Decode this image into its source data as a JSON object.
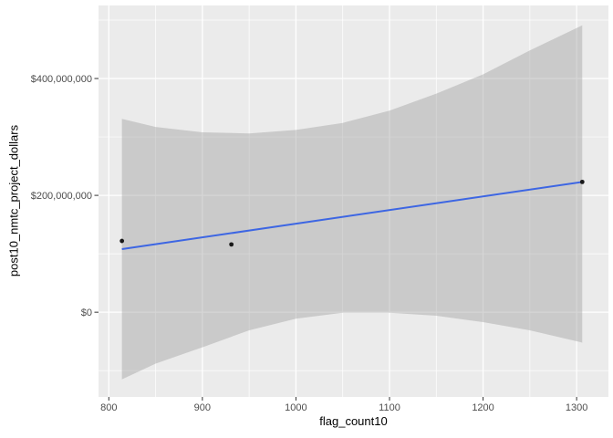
{
  "window": {
    "background": "#FFFFFF"
  },
  "chart_data": {
    "type": "scatter",
    "title": "",
    "xlabel": "flag_count10",
    "ylabel": "post10_nmtc_project_dollars",
    "xlim": [
      789,
      1334
    ],
    "ylim": [
      -145000000,
      525000000
    ],
    "grid": true,
    "legend": false,
    "x_major_ticks": [
      {
        "value": 800,
        "label": "800"
      },
      {
        "value": 900,
        "label": "900"
      },
      {
        "value": 1000,
        "label": "1000"
      },
      {
        "value": 1100,
        "label": "1100"
      },
      {
        "value": 1200,
        "label": "1200"
      },
      {
        "value": 1300,
        "label": "1300"
      }
    ],
    "x_minor_gridlines": [
      850,
      950,
      1050,
      1150,
      1250
    ],
    "y_major_ticks": [
      {
        "value": 0,
        "label": "$0"
      },
      {
        "value": 200000000,
        "label": "$200,000,000"
      },
      {
        "value": 400000000,
        "label": "$400,000,000"
      }
    ],
    "y_minor_gridlines": [
      -100000000,
      100000000,
      300000000,
      500000000
    ],
    "points": [
      {
        "x": 814,
        "y": 122000000
      },
      {
        "x": 931,
        "y": 116000000
      },
      {
        "x": 1306,
        "y": 223000000
      }
    ],
    "regression_line": {
      "x": [
        814,
        1306
      ],
      "y": [
        108000000,
        223000000
      ]
    },
    "confidence_band": {
      "x": [
        814,
        850,
        900,
        950,
        1000,
        1050,
        1100,
        1150,
        1200,
        1250,
        1306
      ],
      "upper": [
        331000000,
        317000000,
        308000000,
        306000000,
        312000000,
        324000000,
        345000000,
        374000000,
        407000000,
        448000000,
        491000000
      ],
      "lower": [
        -115000000,
        -88000000,
        -60000000,
        -31000000,
        -11000000,
        -1000000,
        -1000000,
        -6000000,
        -17000000,
        -31000000,
        -52000000
      ]
    },
    "style": {
      "panel_bg": "#EBEBEB",
      "gridline": "#FFFFFF",
      "band_fill": "#999999",
      "band_opacity": 0.4,
      "line_color": "#3D66E3",
      "point_color": "#191919",
      "tick_mark_color": "#333333",
      "tick_label_color": "#4D4D4D",
      "axis_title_color": "#000000"
    }
  }
}
